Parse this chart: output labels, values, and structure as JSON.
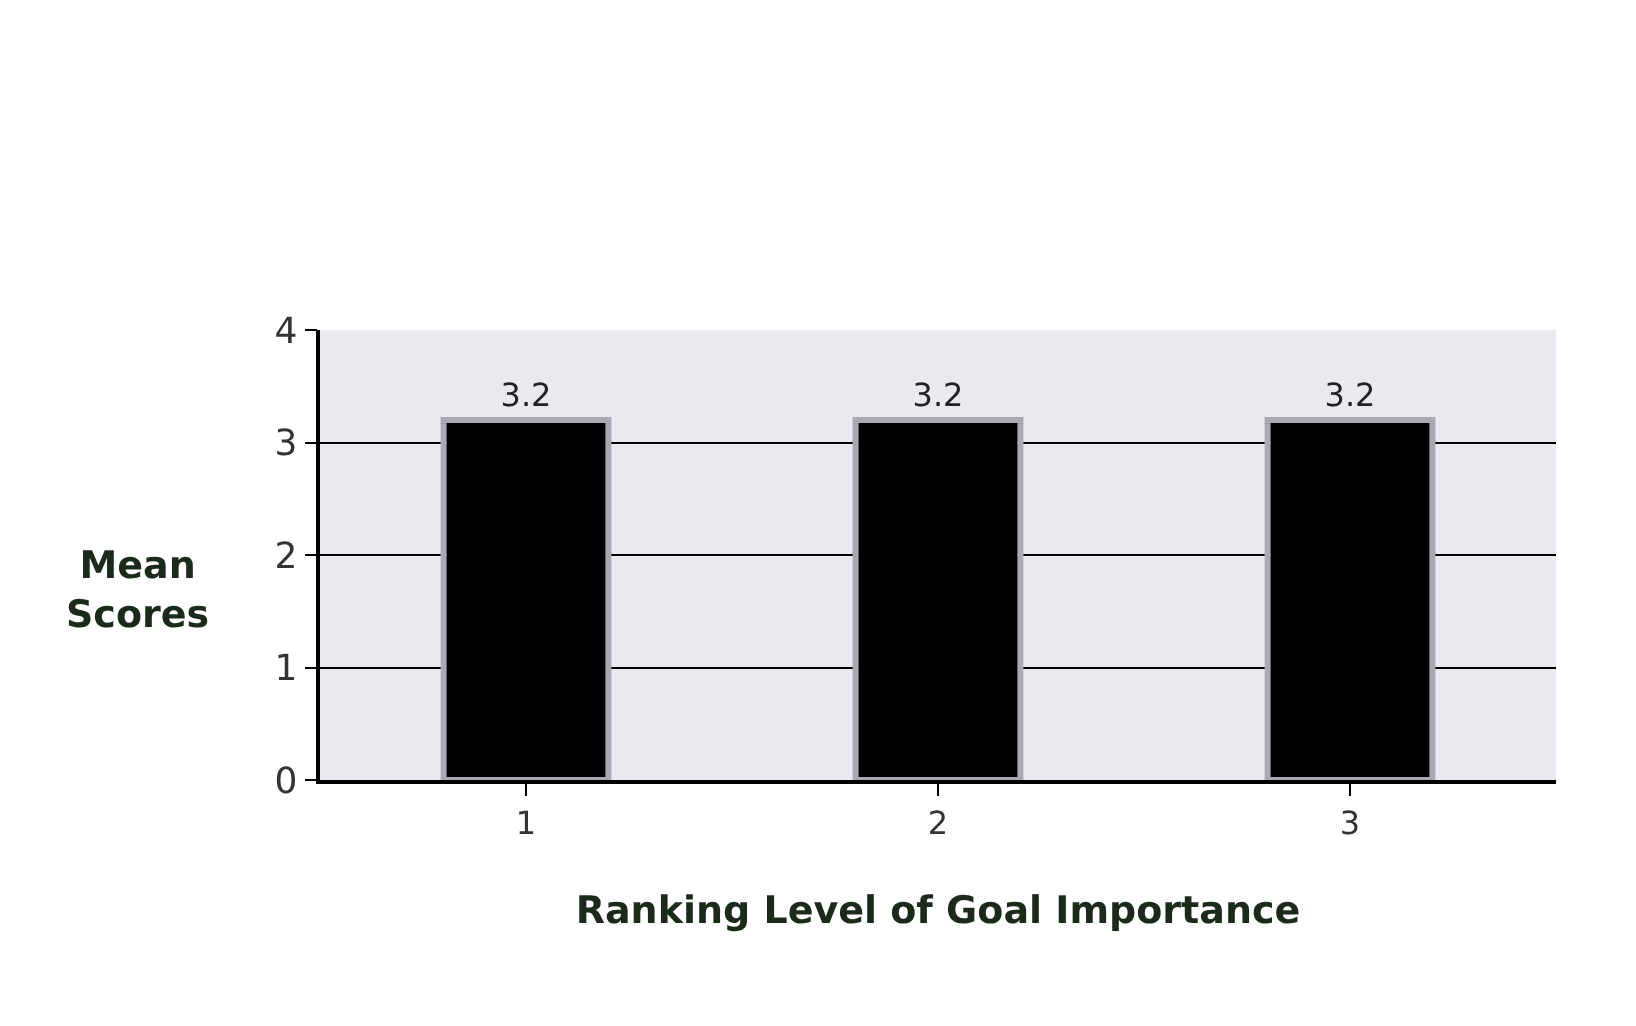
{
  "chart_data": {
    "type": "bar",
    "xlabel": "Ranking Level of Goal Importance",
    "ylabel": "Mean\nScores",
    "categories": [
      "1",
      "2",
      "3"
    ],
    "values": [
      3.2,
      3.2,
      3.2
    ],
    "color": "#000000",
    "ylim": [
      0,
      4
    ],
    "yticks": [
      0,
      1,
      2,
      3,
      4
    ],
    "grid": "y",
    "data_labels": true
  }
}
